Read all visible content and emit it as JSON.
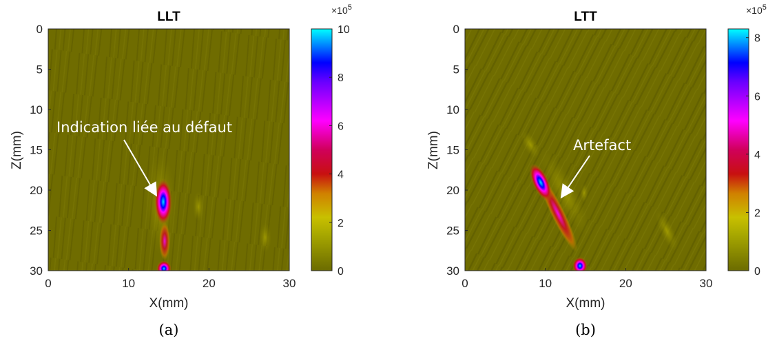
{
  "chart_data": [
    {
      "type": "heatmap",
      "title": "LLT",
      "xlabel": "X(mm)",
      "ylabel": "Z(mm)",
      "xlim": [
        0,
        30
      ],
      "ylim": [
        0,
        30
      ],
      "y_reversed": true,
      "xticks": [
        0,
        10,
        20,
        30
      ],
      "yticks": [
        0,
        5,
        10,
        15,
        20,
        25,
        30
      ],
      "colorbar": {
        "min": 0,
        "max": 10,
        "ticks": [
          0,
          2,
          4,
          6,
          8,
          10
        ],
        "exponent": "×10^5"
      },
      "annotation": {
        "text": "Indication liée au défaut",
        "text_x": 14.3,
        "text_z": 15.5,
        "arrow_to": [
          13.5,
          21
        ]
      },
      "hotspots": [
        {
          "x": 13.8,
          "z": 21.5,
          "value": 10
        },
        {
          "x": 14.2,
          "z": 29.5,
          "value": 8
        }
      ],
      "caption": "(a)"
    },
    {
      "type": "heatmap",
      "title": "LTT",
      "xlabel": "X(mm)",
      "ylabel": "Z(mm)",
      "xlim": [
        0,
        30
      ],
      "ylim": [
        0,
        30
      ],
      "y_reversed": true,
      "xticks": [
        0,
        10,
        20,
        30
      ],
      "yticks": [
        0,
        5,
        10,
        15,
        20,
        25,
        30
      ],
      "colorbar": {
        "min": 0,
        "max": 8.3,
        "ticks": [
          0,
          2,
          4,
          6,
          8
        ],
        "exponent": "×10^5"
      },
      "annotation": {
        "text": "Artefact",
        "text_x": 13,
        "text_z": 15,
        "arrow_to": [
          11,
          21
        ]
      },
      "hotspots": [
        {
          "x": 9.4,
          "z": 19,
          "value": 8.3
        },
        {
          "x": 14.0,
          "z": 29.5,
          "value": 7.5
        }
      ],
      "caption": "(b)"
    }
  ],
  "colors": {
    "background_field": "#6e6b00",
    "colormap": [
      "#6b6b00",
      "#b8b800",
      "#cc3300",
      "#cc0044",
      "#ff00ff",
      "#7a00ff",
      "#0000ff",
      "#00ffff"
    ]
  }
}
